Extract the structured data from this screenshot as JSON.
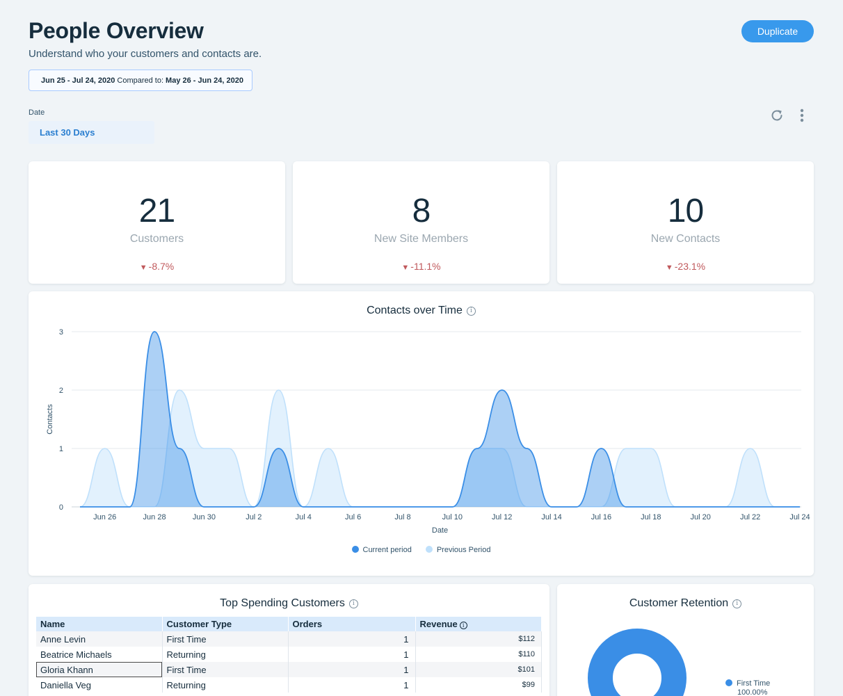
{
  "header": {
    "title": "People Overview",
    "subtitle": "Understand who your customers and contacts are.",
    "duplicate_label": "Duplicate",
    "range_current": "Jun 25 - Jul 24, 2020",
    "range_compared_label": "Compared to:",
    "range_previous": "May 26 - Jun 24, 2020"
  },
  "filters": {
    "date_label": "Date",
    "date_value": "Last 30 Days"
  },
  "icons": {
    "refresh": "refresh-icon",
    "more": "more-vertical-icon",
    "info": "info-icon"
  },
  "kpis": [
    {
      "value": "21",
      "label": "Customers",
      "change": "-8.7%"
    },
    {
      "value": "8",
      "label": "New Site Members",
      "change": "-11.1%"
    },
    {
      "value": "10",
      "label": "New Contacts",
      "change": "-23.1%"
    }
  ],
  "colors": {
    "accent": "#3899ec",
    "current_series": "#3a8ee6",
    "previous_series": "#bfe0fb",
    "negative": "#c0595c"
  },
  "chart_data": {
    "type": "area",
    "title": "Contacts over Time",
    "xlabel": "Date",
    "ylabel": "Contacts",
    "ylim": [
      0,
      3
    ],
    "yticks": [
      0,
      1,
      2,
      3
    ],
    "xticks": [
      "Jun 26",
      "Jun 28",
      "Jun 30",
      "Jul 2",
      "Jul 4",
      "Jul 6",
      "Jul 8",
      "Jul 10",
      "Jul 12",
      "Jul 14",
      "Jul 16",
      "Jul 18",
      "Jul 20",
      "Jul 22",
      "Jul 24"
    ],
    "x": [
      "Jun 25",
      "Jun 26",
      "Jun 27",
      "Jun 28",
      "Jun 29",
      "Jun 30",
      "Jul 1",
      "Jul 2",
      "Jul 3",
      "Jul 4",
      "Jul 5",
      "Jul 6",
      "Jul 7",
      "Jul 8",
      "Jul 9",
      "Jul 10",
      "Jul 11",
      "Jul 12",
      "Jul 13",
      "Jul 14",
      "Jul 15",
      "Jul 16",
      "Jul 17",
      "Jul 18",
      "Jul 19",
      "Jul 20",
      "Jul 21",
      "Jul 22",
      "Jul 23",
      "Jul 24"
    ],
    "series": [
      {
        "name": "Current period",
        "values": [
          0,
          0,
          0,
          3,
          1,
          0,
          0,
          0,
          1,
          0,
          0,
          0,
          0,
          0,
          0,
          0,
          1,
          2,
          1,
          0,
          0,
          1,
          0,
          0,
          0,
          0,
          0,
          0,
          0,
          0
        ]
      },
      {
        "name": "Previous Period",
        "values": [
          0,
          1,
          0,
          0,
          2,
          1,
          1,
          0,
          2,
          0,
          1,
          0,
          0,
          0,
          0,
          0,
          1,
          1,
          0,
          0,
          0,
          0,
          1,
          1,
          0,
          0,
          0,
          1,
          0,
          0
        ]
      }
    ],
    "legend_position": "bottom",
    "grid": true
  },
  "top_spending": {
    "title": "Top Spending Customers",
    "columns": [
      "Name",
      "Customer Type",
      "Orders",
      "Revenue"
    ],
    "rows": [
      {
        "name": "Anne Levin",
        "type": "First Time",
        "orders": "1",
        "revenue": "$112"
      },
      {
        "name": "Beatrice Michaels",
        "type": "Returning",
        "orders": "1",
        "revenue": "$110"
      },
      {
        "name": "Gloria Khann",
        "type": "First Time",
        "orders": "1",
        "revenue": "$101"
      },
      {
        "name": "Daniella Veg",
        "type": "Returning",
        "orders": "1",
        "revenue": "$99"
      }
    ]
  },
  "retention": {
    "title": "Customer Retention",
    "legend_label": "First Time",
    "legend_value": "100.00%",
    "first_time_fraction": 1.0
  }
}
